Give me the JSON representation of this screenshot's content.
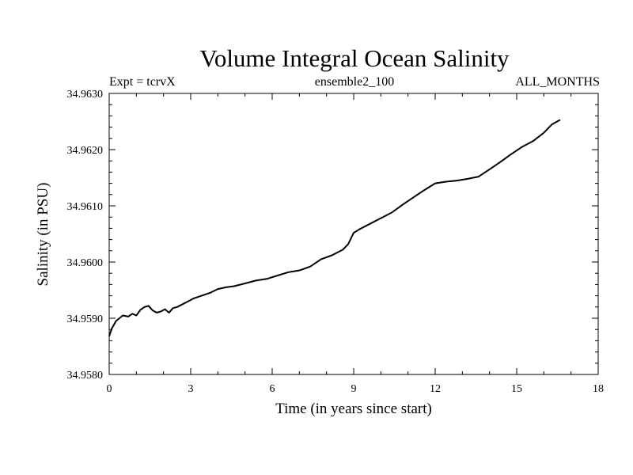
{
  "chart_data": {
    "type": "line",
    "title": "Volume Integral Ocean Salinity",
    "subtitle_left": "Expt = tcrvX",
    "subtitle_center": "ensemble2_100",
    "subtitle_right": "ALL_MONTHS",
    "xlabel": "Time (in years since start)",
    "ylabel": "Salinity (in PSU)",
    "xlim": [
      0,
      18
    ],
    "ylim": [
      34.958,
      34.963
    ],
    "x_ticks": [
      0,
      3,
      6,
      9,
      12,
      15,
      18
    ],
    "x_tick_labels": [
      "0",
      "3",
      "6",
      "9",
      "12",
      "15",
      "18"
    ],
    "y_ticks": [
      34.958,
      34.959,
      34.96,
      34.961,
      34.962,
      34.963
    ],
    "y_tick_labels": [
      "34.9580",
      "34.9590",
      "34.9600",
      "34.9610",
      "34.9620",
      "34.9630"
    ],
    "grid": false,
    "legend": "none",
    "line_color": "#000000",
    "series": [
      {
        "x": [
          0,
          0.1,
          0.25,
          0.5,
          0.7,
          0.85,
          1.0,
          1.15,
          1.3,
          1.45,
          1.6,
          1.75,
          1.9,
          2.05,
          2.2,
          2.35,
          2.5,
          2.7,
          2.9,
          3.1,
          3.4,
          3.7,
          4.0,
          4.3,
          4.6,
          5.0,
          5.4,
          5.8,
          6.2,
          6.6,
          7.0,
          7.4,
          7.8,
          8.2,
          8.6,
          8.8,
          9.0,
          9.2,
          9.6,
          10.0,
          10.4,
          10.8,
          11.2,
          11.6,
          12.0,
          12.4,
          12.8,
          13.2,
          13.6,
          14.0,
          14.4,
          14.8,
          15.2,
          15.6,
          16.0,
          16.3,
          16.6
        ],
        "y": [
          34.95868,
          34.95882,
          34.95895,
          34.95905,
          34.95903,
          34.95908,
          34.95905,
          34.95915,
          34.9592,
          34.95922,
          34.95914,
          34.9591,
          34.95912,
          34.95916,
          34.9591,
          34.95918,
          34.9592,
          34.95925,
          34.9593,
          34.95935,
          34.9594,
          34.95945,
          34.95952,
          34.95955,
          34.95957,
          34.95962,
          34.95967,
          34.9597,
          34.95976,
          34.95982,
          34.95985,
          34.95992,
          34.96005,
          34.96012,
          34.96022,
          34.96032,
          34.96052,
          34.96058,
          34.96068,
          34.96078,
          34.96088,
          34.96102,
          34.96115,
          34.96128,
          34.9614,
          34.96143,
          34.96145,
          34.96148,
          34.96152,
          34.96165,
          34.96178,
          34.96192,
          34.96205,
          34.96215,
          34.9623,
          34.96245,
          34.96253
        ]
      }
    ]
  }
}
